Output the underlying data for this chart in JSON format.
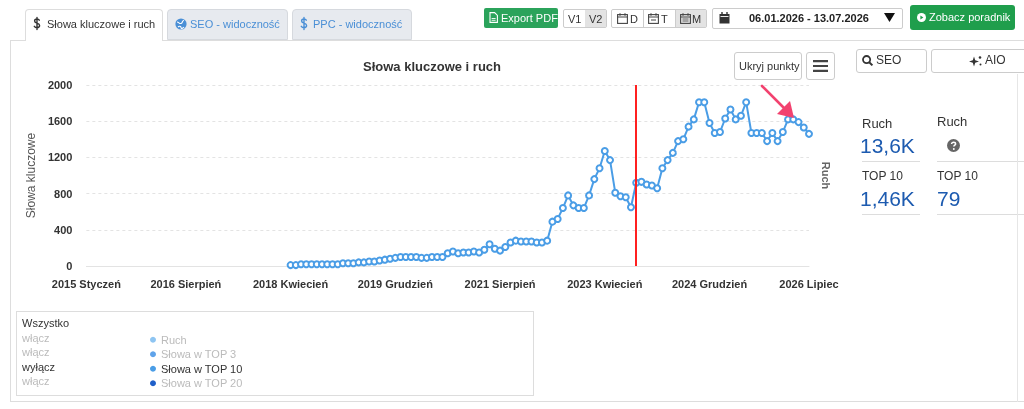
{
  "chart_data": {
    "type": "line",
    "title": "Słowa kluczowe i ruch",
    "ylabel": "Słowa kluczowe",
    "y2label": "Ruch",
    "xlim": [
      "2015-01",
      "2026-07"
    ],
    "xticks": [
      {
        "value": "2015-01",
        "label": "2015 Styczeń"
      },
      {
        "value": "2016-08",
        "label": "2016 Sierpień"
      },
      {
        "value": "2018-04",
        "label": "2018 Kwiecień"
      },
      {
        "value": "2019-12",
        "label": "2019 Grudzień"
      },
      {
        "value": "2021-08",
        "label": "2021 Sierpień"
      },
      {
        "value": "2023-04",
        "label": "2023 Kwiecień"
      },
      {
        "value": "2024-12",
        "label": "2024 Grudzień"
      },
      {
        "value": "2026-07",
        "label": "2026 Lipiec"
      }
    ],
    "ylim": [
      0,
      2000
    ],
    "yticks": [
      0,
      400,
      800,
      1200,
      1600,
      2000
    ],
    "grid": "y",
    "marker": "circle",
    "legend": "bottom left",
    "series": [
      {
        "name": "Ruch",
        "color": "#8ec5f2"
      },
      {
        "name": "Słowa w TOP 3",
        "color": "#5fa3ea"
      },
      {
        "name": "Słowa w TOP 10",
        "color": "#4a9de6",
        "x": [
          "2018-04",
          "2018-05",
          "2018-06",
          "2018-07",
          "2018-08",
          "2018-09",
          "2018-10",
          "2018-11",
          "2018-12",
          "2019-01",
          "2019-02",
          "2019-03",
          "2019-04",
          "2019-05",
          "2019-06",
          "2019-07",
          "2019-08",
          "2019-09",
          "2019-10",
          "2019-11",
          "2019-12",
          "2020-01",
          "2020-02",
          "2020-03",
          "2020-04",
          "2020-05",
          "2020-06",
          "2020-07",
          "2020-08",
          "2020-09",
          "2020-10",
          "2020-11",
          "2020-12",
          "2021-01",
          "2021-02",
          "2021-03",
          "2021-04",
          "2021-05",
          "2021-06",
          "2021-07",
          "2021-08",
          "2021-09",
          "2021-10",
          "2021-11",
          "2021-12",
          "2022-01",
          "2022-02",
          "2022-03",
          "2022-04",
          "2022-05",
          "2022-06",
          "2022-07",
          "2022-08",
          "2022-09",
          "2022-10",
          "2022-11",
          "2022-12",
          "2023-01",
          "2023-02",
          "2023-03",
          "2023-04",
          "2023-05",
          "2023-06",
          "2023-07",
          "2023-08",
          "2023-09",
          "2023-10",
          "2023-11",
          "2023-12",
          "2024-01",
          "2024-02",
          "2024-03",
          "2024-04",
          "2024-05",
          "2024-06",
          "2024-07",
          "2024-08",
          "2024-09",
          "2024-10",
          "2024-11",
          "2024-12",
          "2025-01",
          "2025-02",
          "2025-03",
          "2025-04",
          "2025-05",
          "2025-06",
          "2025-07",
          "2025-08",
          "2025-09",
          "2025-10",
          "2025-11",
          "2025-12",
          "2026-01",
          "2026-02",
          "2026-03",
          "2026-04",
          "2026-05",
          "2026-06",
          "2026-07"
        ],
        "values": [
          10,
          10,
          20,
          20,
          20,
          20,
          20,
          20,
          20,
          20,
          30,
          30,
          30,
          40,
          40,
          50,
          50,
          60,
          70,
          80,
          90,
          100,
          100,
          100,
          100,
          90,
          90,
          100,
          100,
          100,
          140,
          160,
          140,
          150,
          150,
          160,
          150,
          180,
          240,
          190,
          170,
          210,
          260,
          280,
          270,
          270,
          270,
          260,
          260,
          280,
          490,
          520,
          640,
          780,
          670,
          640,
          640,
          780,
          960,
          1080,
          1270,
          1170,
          810,
          770,
          760,
          650,
          920,
          930,
          900,
          890,
          860,
          1080,
          1170,
          1250,
          1380,
          1400,
          1540,
          1620,
          1810,
          1810,
          1580,
          1470,
          1480,
          1630,
          1730,
          1620,
          1660,
          1810,
          1470,
          1470,
          1470,
          1380,
          1470,
          1380,
          1480,
          1620,
          1620,
          1590,
          1530,
          1460
        ]
      },
      {
        "name": "Słowa w TOP 20",
        "color": "#1f5fc9"
      }
    ],
    "ref_lines": [
      {
        "axis": "x",
        "value": "2023-10",
        "color": "#ff2020"
      }
    ],
    "annotations": [
      "Słowa kluczowe i ruch",
      "SEO - widoczność",
      "PPC - widoczność",
      "Export PDF",
      "V1",
      "V2",
      "D",
      "T",
      "M",
      "06.01.2026 - 13.07.2026",
      "Zobacz poradnik",
      "Ukryj punkty",
      "SEO",
      "AIO",
      "Ruch",
      "13,6K",
      "TOP 10",
      "1,46K",
      "Ruch",
      "TOP 10",
      "79",
      "Wszystko",
      "włącz",
      "włącz",
      "wyłącz",
      "włącz"
    ]
  }
}
